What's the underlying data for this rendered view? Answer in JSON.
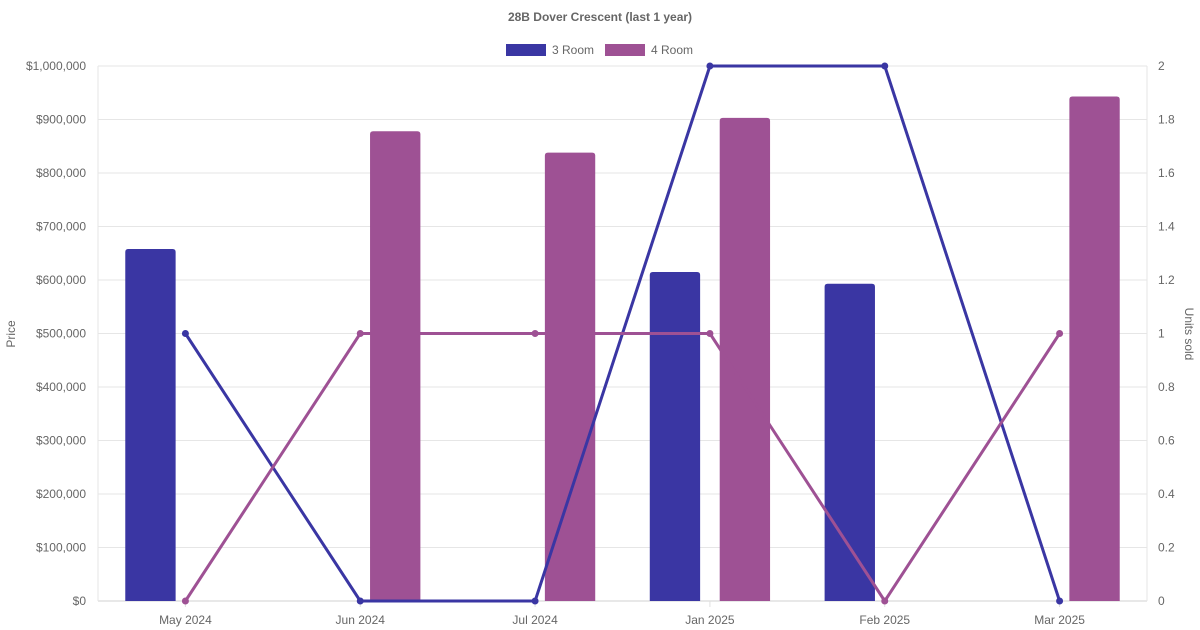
{
  "chart_data": {
    "type": "bar",
    "title": "28B Dover Crescent (last 1 year)",
    "categories": [
      "May 2024",
      "Jun 2024",
      "Jul 2024",
      "Jan 2025",
      "Feb 2025",
      "Mar 2025"
    ],
    "ylabel": "Price",
    "y2label": "Units sold",
    "ylim": [
      0,
      1000000
    ],
    "y2lim": [
      0,
      2
    ],
    "y_ticks": [
      "$0",
      "$100,000",
      "$200,000",
      "$300,000",
      "$400,000",
      "$500,000",
      "$600,000",
      "$700,000",
      "$800,000",
      "$900,000",
      "$1,000,000"
    ],
    "y2_ticks": [
      "0",
      "0.2",
      "0.4",
      "0.6",
      "0.8",
      "1",
      "1.2",
      "1.4",
      "1.6",
      "1.8",
      "2"
    ],
    "grid": true,
    "legend_position": "top",
    "series": [
      {
        "name": "3 Room",
        "kind": "bar",
        "axis": "price",
        "color": "#3a36a3",
        "values": [
          658000,
          null,
          null,
          615000,
          593000,
          null
        ]
      },
      {
        "name": "4 Room",
        "kind": "bar",
        "axis": "price",
        "color": "#9e5194",
        "values": [
          null,
          878000,
          838000,
          903000,
          null,
          943000
        ]
      },
      {
        "name": "3 Room",
        "kind": "line",
        "axis": "units",
        "color": "#3a36a3",
        "values": [
          1,
          0,
          0,
          2,
          2,
          0
        ]
      },
      {
        "name": "4 Room",
        "kind": "line",
        "axis": "units",
        "color": "#9e5194",
        "values": [
          0,
          1,
          1,
          1,
          0,
          1
        ]
      }
    ]
  }
}
